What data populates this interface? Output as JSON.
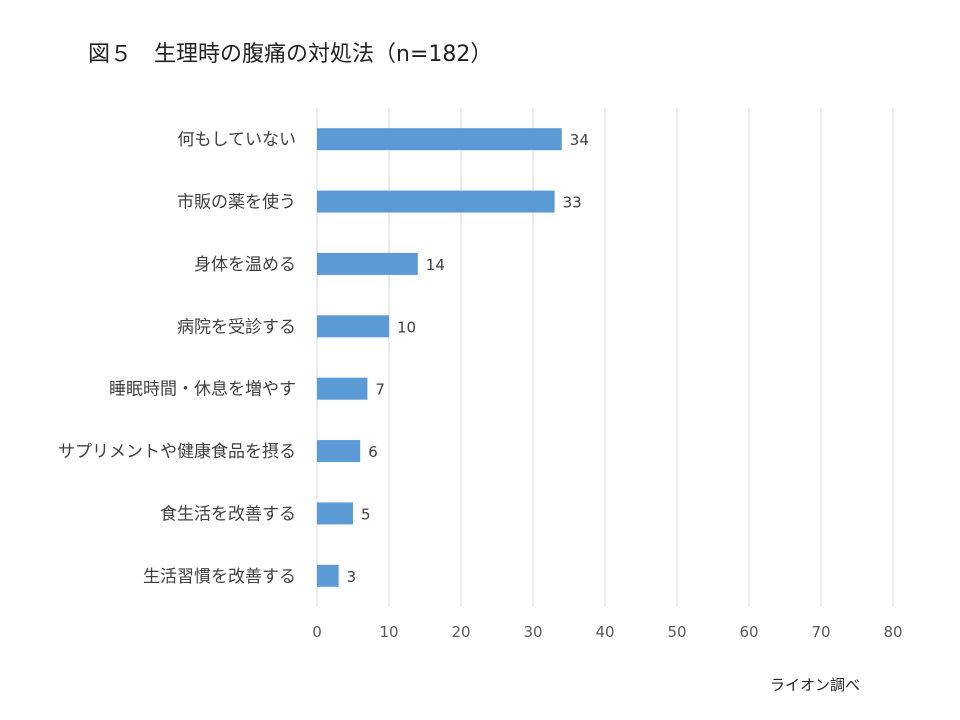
{
  "page": {
    "title": "図５　生理時の腹痛の対処法（n=182）",
    "source": "ライオン調べ"
  },
  "chart_data": {
    "type": "bar",
    "orientation": "horizontal",
    "title": "図５　生理時の腹痛の対処法（n=182）",
    "xlabel": "",
    "ylabel": "",
    "categories": [
      "何もしていない",
      "市販の薬を使う",
      "身体を温める",
      "病院を受診する",
      "睡眠時間・休息を増やす",
      "サプリメントや健康食品を摂る",
      "食生活を改善する",
      "生活習慣を改善する"
    ],
    "values": [
      34,
      33,
      14,
      10,
      7,
      6,
      5,
      3
    ],
    "xlim": [
      0,
      80
    ],
    "x_ticks": [
      0,
      10,
      20,
      30,
      40,
      50,
      60,
      70,
      80
    ],
    "grid": "vertical",
    "legend": "none",
    "bar_color": "#5b9bd5",
    "grid_color": "#d9d9d9"
  }
}
